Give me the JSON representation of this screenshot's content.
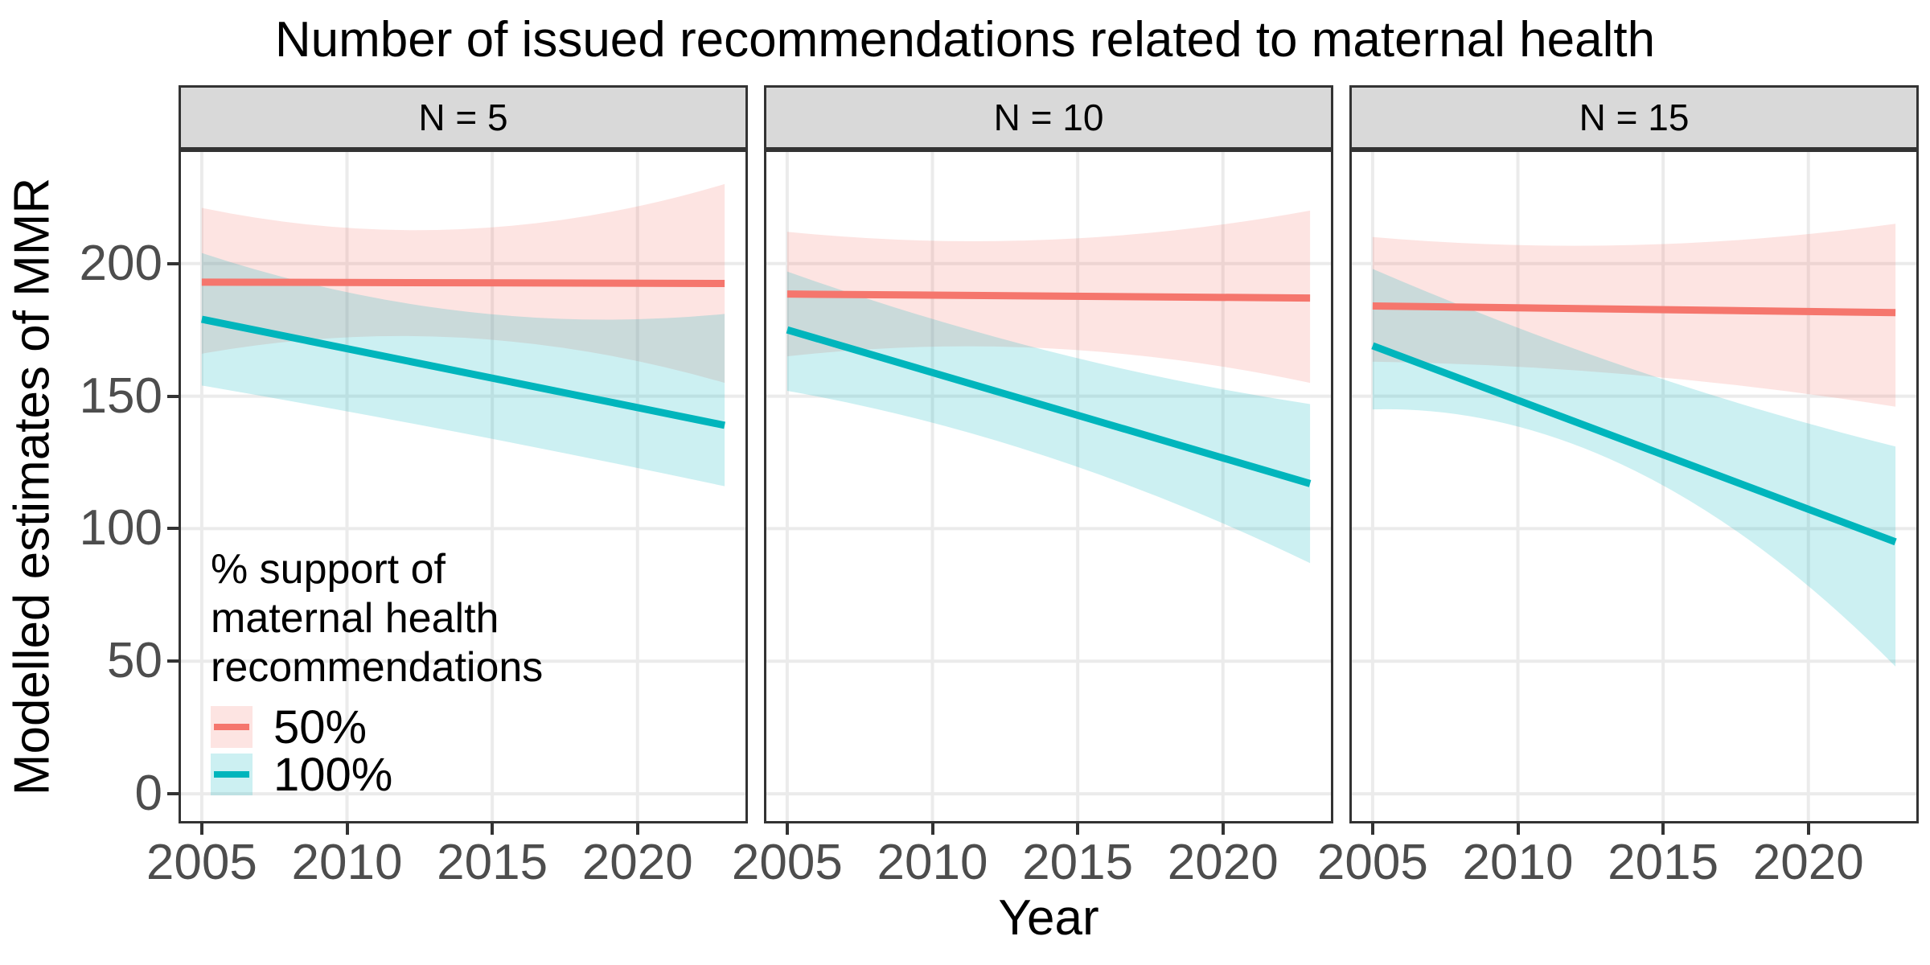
{
  "chart_data": {
    "type": "line",
    "title": "Number of issued recommendations related to maternal health",
    "xlabel": "Year",
    "ylabel": "Modelled estimates of MMR",
    "x_ticks": [
      2005,
      2010,
      2015,
      2020
    ],
    "y_ticks": [
      0,
      50,
      100,
      150,
      200
    ],
    "x_domain": [
      2004.2,
      2023.8
    ],
    "y_domain": [
      -11.2,
      243
    ],
    "grid": "major-only",
    "legend": {
      "position": "inside-bottom-left",
      "title_lines": [
        "% support of",
        "maternal health",
        "recommendations"
      ],
      "entries": [
        {
          "label": "50%",
          "color": "#F5766D"
        },
        {
          "label": "100%",
          "color": "#00B5BC"
        }
      ]
    },
    "style": {
      "series_colors": [
        "#F5766D",
        "#00B5BC"
      ],
      "ribbon_opacity": 0.2,
      "grid_color": "#EBEBEB",
      "panel_border_color": "#333333",
      "strip_background": "#D9D9D9",
      "tick_text_color": "#4D4D4D",
      "line_width": 9
    },
    "facets": [
      {
        "label": "N = 5",
        "series": [
          {
            "name": "50%",
            "x": [
              2005,
              2023
            ],
            "y": [
              193,
              192.5
            ],
            "ribbon": {
              "x": [
                2005,
                2014,
                2023
              ],
              "upper": [
                221,
                213,
                230
              ],
              "lower": [
                166,
                172,
                155
              ]
            }
          },
          {
            "name": "100%",
            "x": [
              2005,
              2023
            ],
            "y": [
              179,
              139
            ],
            "ribbon": {
              "x": [
                2005,
                2014,
                2023
              ],
              "upper": [
                204,
                182,
                181
              ],
              "lower": [
                154,
                136,
                116
              ]
            }
          }
        ]
      },
      {
        "label": "N = 10",
        "series": [
          {
            "name": "50%",
            "x": [
              2005,
              2023
            ],
            "y": [
              188.5,
              187
            ],
            "ribbon": {
              "x": [
                2005,
                2014,
                2023
              ],
              "upper": [
                212,
                209,
                220
              ],
              "lower": [
                165,
                168,
                155
              ]
            }
          },
          {
            "name": "100%",
            "x": [
              2005,
              2023
            ],
            "y": [
              175,
              117
            ],
            "ribbon": {
              "x": [
                2005,
                2014,
                2023
              ],
              "upper": [
                197,
                167,
                147
              ],
              "lower": [
                152,
                127,
                87
              ]
            }
          }
        ]
      },
      {
        "label": "N = 15",
        "series": [
          {
            "name": "50%",
            "x": [
              2005,
              2023
            ],
            "y": [
              184,
              181.5
            ],
            "ribbon": {
              "x": [
                2005,
                2014,
                2023
              ],
              "upper": [
                210,
                207,
                215
              ],
              "lower": [
                163,
                158,
                146
              ]
            }
          },
          {
            "name": "100%",
            "x": [
              2005,
              2023
            ],
            "y": [
              169,
              95
            ],
            "ribbon": {
              "x": [
                2005,
                2014,
                2023
              ],
              "upper": [
                198,
                160,
                131
              ],
              "lower": [
                145,
                122,
                48
              ]
            }
          }
        ]
      }
    ]
  }
}
